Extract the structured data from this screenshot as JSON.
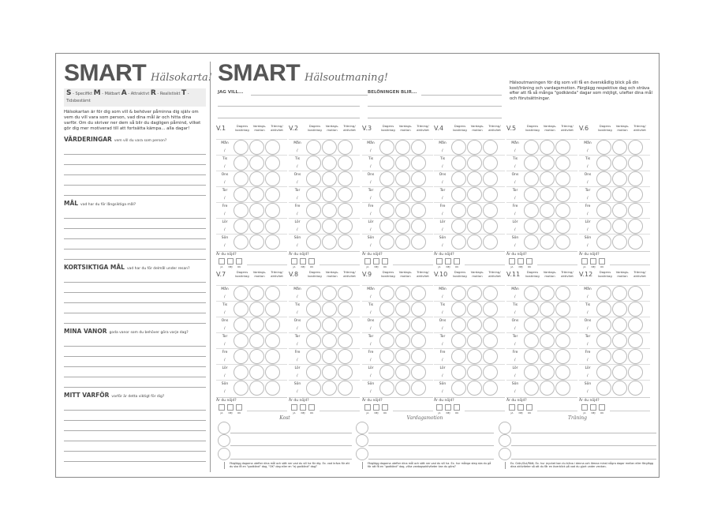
{
  "left": {
    "title": "SMART",
    "subtitle": "Hälsokarta!",
    "smart": [
      {
        "l": "S",
        "t": "- Specifikt"
      },
      {
        "l": "M",
        "t": "- Mätbart"
      },
      {
        "l": "A",
        "t": "- Attraktivt"
      },
      {
        "l": "R",
        "t": "- Realistiskt"
      },
      {
        "l": "T",
        "t": "- Tidsbestämt"
      }
    ],
    "intro": "Hälsokartan är för dig som vill & behöver påminna dig själv om vem du vill vara som person, vad dina mål är och hitta dina varför. Om du skriver ner dem så blir du dagligen påmind, vilket gör dig mer motiverad till att fortsätta kämpa... alla dagar!",
    "sections": [
      {
        "title": "VÄRDERINGAR",
        "hint": "vem vill du vara som person?"
      },
      {
        "title": "MÅL",
        "hint": "vad har du för långsiktiga mål?"
      },
      {
        "title": "KORTSIKTIGA MÅL",
        "hint": "vad har du för delmål under resan?"
      },
      {
        "title": "MINA VANOR",
        "hint": "goda vanor som du behöver göra varje dag?"
      },
      {
        "title": "MITT VARFÖR",
        "hint": "varför är detta viktigt för dig?"
      }
    ]
  },
  "right": {
    "title": "SMART",
    "subtitle": "Hälsoutmaning!",
    "jag_vill": "JAG VILL...",
    "beloning": "BELÖNINGEN BLIR...",
    "info": "Hälsoutmaningen för dig som vill få en överskådlig blick på din kost/träning och vardagsmotion. Färglägg respektive dag och sträva efter att få så många \"godkända\" dagar som möjligt, utefter dina mål och förutsättningar.",
    "col_headers": [
      "Dagens kostintag",
      "Vardags-motion",
      "Träning/ aktivitet"
    ],
    "days": [
      "Mån",
      "Tis",
      "Ons",
      "Tor",
      "Fre",
      "Lör",
      "Sön"
    ],
    "day_sep": "/",
    "weeks": [
      "V.1",
      "V.2",
      "V.3",
      "V.4",
      "V.5",
      "V.6",
      "V.7",
      "V.8",
      "V.9",
      "V.10",
      "V.11",
      "V.12"
    ],
    "nojd": "Är du nöjd?",
    "answers": [
      "JA",
      "NEJ",
      "OK"
    ]
  },
  "bottom": [
    {
      "title": "Kost",
      "note": "Färglägg dagarna utefter dina mål och sätt ner vad du vill ha för dig. Ex. vad krävs för att du ska få en \"godkänd\" dag, \"OK\" dag eller en \"ej godkänd\" dag?"
    },
    {
      "title": "Vardagsmotion",
      "note": "Färglägg dagarna utefter dina mål och sätt ner vad du vill ha. Ex. hur många steg ska du gå för att få en \"godkänd\" dag, vilka vardagsaktiviteter kan du göra?"
    },
    {
      "title": "Träning",
      "note": "Ex. Grön/Gul/Rött: Ex. hur mycket kan du träna i denna och lämna minst några dagar mellan eller färglägg dina aktiviteter så att du får en överblick på vad du gjort under veckan."
    }
  ]
}
